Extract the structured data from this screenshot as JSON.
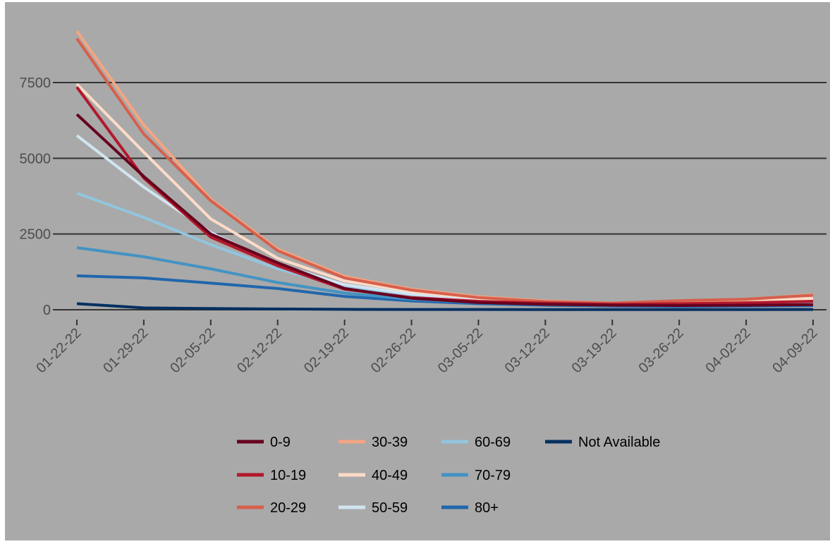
{
  "chart_data": {
    "type": "line",
    "title": "",
    "xlabel": "",
    "ylabel": "",
    "x": [
      "01-22-22",
      "01-29-22",
      "02-05-22",
      "02-12-22",
      "02-19-22",
      "02-26-22",
      "03-05-22",
      "03-12-22",
      "03-19-22",
      "03-26-22",
      "04-02-22",
      "04-09-22"
    ],
    "y_ticks": [
      0,
      2500,
      5000,
      7500
    ],
    "y_tick_labels": [
      "0",
      "2500",
      "5000",
      "7500"
    ],
    "ylim": [
      -150,
      9600
    ],
    "grid": "horizontal major",
    "legend_position": "bottom",
    "background": "#A9A9A9",
    "series": [
      {
        "name": "0-9",
        "color": "#67001F",
        "values": [
          6450,
          4400,
          2500,
          1550,
          700,
          380,
          240,
          180,
          150,
          140,
          150,
          170
        ]
      },
      {
        "name": "10-19",
        "color": "#B2182B",
        "values": [
          7350,
          4350,
          2400,
          1450,
          680,
          400,
          280,
          220,
          180,
          200,
          230,
          280
        ]
      },
      {
        "name": "20-29",
        "color": "#D6604D",
        "values": [
          8950,
          5800,
          3600,
          1950,
          1050,
          650,
          400,
          270,
          220,
          300,
          350,
          480
        ]
      },
      {
        "name": "30-39",
        "color": "#F4A582",
        "values": [
          9200,
          6100,
          3650,
          2000,
          1100,
          680,
          430,
          290,
          220,
          280,
          330,
          500
        ]
      },
      {
        "name": "40-49",
        "color": "#FDDBC7",
        "values": [
          7450,
          5200,
          3000,
          1700,
          950,
          600,
          380,
          270,
          200,
          220,
          260,
          380
        ]
      },
      {
        "name": "50-59",
        "color": "#D1E5F0",
        "values": [
          5750,
          4050,
          2550,
          1500,
          830,
          520,
          340,
          240,
          180,
          190,
          220,
          300
        ]
      },
      {
        "name": "60-69",
        "color": "#92C5DE",
        "values": [
          3850,
          3050,
          2150,
          1350,
          760,
          460,
          300,
          210,
          160,
          160,
          180,
          230
        ]
      },
      {
        "name": "70-79",
        "color": "#4393C3",
        "values": [
          2050,
          1750,
          1350,
          900,
          550,
          350,
          240,
          180,
          140,
          140,
          150,
          180
        ]
      },
      {
        "name": "80+",
        "color": "#2166AC",
        "values": [
          1120,
          1050,
          880,
          700,
          440,
          290,
          200,
          150,
          120,
          110,
          120,
          140
        ]
      },
      {
        "name": "Not Available",
        "color": "#053061",
        "values": [
          200,
          60,
          40,
          25,
          15,
          10,
          10,
          8,
          8,
          8,
          8,
          10
        ]
      }
    ]
  }
}
